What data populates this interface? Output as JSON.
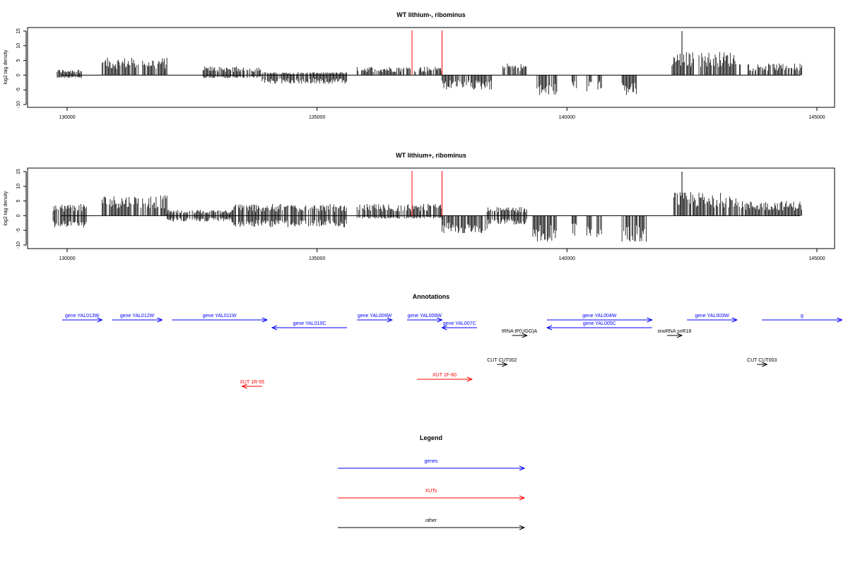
{
  "colors": {
    "genes": "#0000ff",
    "xuts": "#ff0000",
    "other": "#000000",
    "marker": "#ff0000",
    "signal": "#000000"
  },
  "chart_data": [
    {
      "type": "bar",
      "title": "WT lithium-, ribominus",
      "ylabel": "log2 tag density",
      "xlim": [
        129700,
        144700
      ],
      "ylim": [
        -10,
        15
      ],
      "xticks": [
        130000,
        135000,
        140000,
        145000
      ],
      "yticks": [
        -10,
        -5,
        0,
        5,
        10,
        15
      ],
      "grid": false,
      "markers_x": [
        136900,
        137500
      ],
      "segments": [
        {
          "from": 129800,
          "to": 130300,
          "max": 2,
          "min": -1
        },
        {
          "from": 130700,
          "to": 132000,
          "max": 6,
          "min": 0
        },
        {
          "from": 132700,
          "to": 133900,
          "max": 3,
          "min": -1
        },
        {
          "from": 133900,
          "to": 135600,
          "max": 1,
          "min": -3
        },
        {
          "from": 135800,
          "to": 137500,
          "max": 3,
          "min": 0
        },
        {
          "from": 137500,
          "to": 138500,
          "max": 0,
          "min": -5
        },
        {
          "from": 138700,
          "to": 139200,
          "max": 4,
          "min": 0
        },
        {
          "from": 139400,
          "to": 139800,
          "max": 0,
          "min": -7
        },
        {
          "from": 140100,
          "to": 140200,
          "max": 0,
          "min": -5
        },
        {
          "from": 140400,
          "to": 140500,
          "max": 0,
          "min": -6
        },
        {
          "from": 140600,
          "to": 140700,
          "max": 0,
          "min": -5
        },
        {
          "from": 141100,
          "to": 141400,
          "max": 0,
          "min": -7
        },
        {
          "from": 142100,
          "to": 143500,
          "max": 8,
          "min": 0,
          "peak_x": 142300,
          "peak": 15
        },
        {
          "from": 143600,
          "to": 144700,
          "max": 4,
          "min": 0
        }
      ]
    },
    {
      "type": "bar",
      "title": "WT lithium+, ribominus",
      "ylabel": "log2 tag density",
      "xlim": [
        129700,
        144700
      ],
      "ylim": [
        -10,
        15
      ],
      "xticks": [
        130000,
        135000,
        140000,
        145000
      ],
      "yticks": [
        -10,
        -5,
        0,
        5,
        10,
        15
      ],
      "grid": false,
      "markers_x": [
        136900,
        137500
      ],
      "segments": [
        {
          "from": 129700,
          "to": 130400,
          "max": 4,
          "min": -4
        },
        {
          "from": 130700,
          "to": 132000,
          "max": 7,
          "min": 0
        },
        {
          "from": 132000,
          "to": 133300,
          "max": 2,
          "min": -2
        },
        {
          "from": 133300,
          "to": 135600,
          "max": 4,
          "min": -4
        },
        {
          "from": 135800,
          "to": 137500,
          "max": 4,
          "min": -1
        },
        {
          "from": 137500,
          "to": 138400,
          "max": 0,
          "min": -6
        },
        {
          "from": 138400,
          "to": 139200,
          "max": 3,
          "min": -3
        },
        {
          "from": 139300,
          "to": 139800,
          "max": 0,
          "min": -9
        },
        {
          "from": 140100,
          "to": 140200,
          "max": 0,
          "min": -7
        },
        {
          "from": 140400,
          "to": 140500,
          "max": 0,
          "min": -8
        },
        {
          "from": 140600,
          "to": 140700,
          "max": 0,
          "min": -9
        },
        {
          "from": 141100,
          "to": 141600,
          "max": 0,
          "min": -9
        },
        {
          "from": 142100,
          "to": 143400,
          "max": 8,
          "min": 0,
          "peak_x": 142300,
          "peak": 15
        },
        {
          "from": 143400,
          "to": 144700,
          "max": 5,
          "min": 0
        }
      ]
    }
  ],
  "annotations": {
    "title": "Annotations",
    "features": [
      {
        "label": "gene YAL013W",
        "kind": "genes",
        "start": 129900,
        "end": 130700,
        "strand": "+",
        "row": 0
      },
      {
        "label": "gene YAL012W",
        "kind": "genes",
        "start": 130900,
        "end": 131900,
        "strand": "+",
        "row": 0
      },
      {
        "label": "gene YAL011W",
        "kind": "genes",
        "start": 132100,
        "end": 134000,
        "strand": "+",
        "row": 0
      },
      {
        "label": "gene YAL010C",
        "kind": "genes",
        "start": 134100,
        "end": 135600,
        "strand": "-",
        "row": 1
      },
      {
        "label": "gene YAL009W",
        "kind": "genes",
        "start": 135800,
        "end": 136500,
        "strand": "+",
        "row": 0
      },
      {
        "label": "gene YAL008W",
        "kind": "genes",
        "start": 136800,
        "end": 137500,
        "strand": "+",
        "row": 0
      },
      {
        "label": "gene YAL007C",
        "kind": "genes",
        "start": 137500,
        "end": 138200,
        "strand": "-",
        "row": 1
      },
      {
        "label": "tRNA tP(UGG)A",
        "kind": "other",
        "start": 138900,
        "end": 139200,
        "strand": "+",
        "row": 2
      },
      {
        "label": "gene YAL005C",
        "kind": "genes",
        "start": 139600,
        "end": 141700,
        "strand": "-",
        "row": 1
      },
      {
        "label": "gene YAL004W",
        "kind": "genes",
        "start": 139600,
        "end": 141700,
        "strand": "+",
        "row": 0
      },
      {
        "label": "snoRNA snR18",
        "kind": "other",
        "start": 142000,
        "end": 142300,
        "strand": "+",
        "row": 2
      },
      {
        "label": "gene YAL003W",
        "kind": "genes",
        "start": 142400,
        "end": 143400,
        "strand": "+",
        "row": 0
      },
      {
        "label": "g",
        "kind": "genes",
        "start": 143900,
        "end": 145500,
        "strand": "+",
        "row": 0
      },
      {
        "label": "CUT CUT002",
        "kind": "other",
        "start": 138600,
        "end": 138800,
        "strand": "+",
        "row": 3
      },
      {
        "label": "CUT CUT003",
        "kind": "other",
        "start": 143800,
        "end": 144000,
        "strand": "+",
        "row": 3
      },
      {
        "label": "XUT 1F-60",
        "kind": "xuts",
        "start": 137000,
        "end": 138100,
        "strand": "+",
        "row": 4
      },
      {
        "label": "XUT 1R-55",
        "kind": "xuts",
        "start": 133500,
        "end": 133900,
        "strand": "-",
        "row": 5
      }
    ]
  },
  "legend": {
    "title": "Legend",
    "items": [
      {
        "label": "genes",
        "kind": "genes"
      },
      {
        "label": "XUTs",
        "kind": "xuts"
      },
      {
        "label": "other",
        "kind": "other"
      }
    ]
  }
}
